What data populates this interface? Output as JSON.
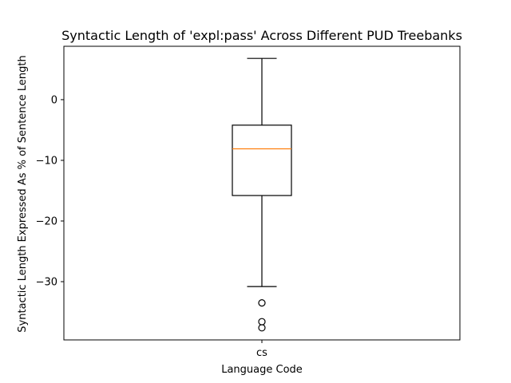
{
  "chart_data": {
    "type": "box",
    "title": "Syntactic Length of 'expl:pass' Across Different PUD Treebanks",
    "xlabel": "Language Code",
    "ylabel": "Syntactic Length Expressed As % of Sentence Length",
    "categories": [
      "cs"
    ],
    "boxes": [
      {
        "category": "cs",
        "whisker_low": -30.8,
        "q1": -15.8,
        "median": -8.1,
        "q3": -4.2,
        "whisker_high": 6.8,
        "outliers": [
          -33.5,
          -36.6,
          -37.6
        ]
      }
    ],
    "ylim": [
      -39.6,
      8.8
    ],
    "yticks": [
      0,
      -10,
      -20,
      -30
    ],
    "ytick_labels": [
      "0",
      "−10",
      "−20",
      "−30"
    ],
    "grid": false,
    "colors": {
      "box": "#000000",
      "median": "#ff7f0e",
      "outlier": "#000000"
    }
  }
}
